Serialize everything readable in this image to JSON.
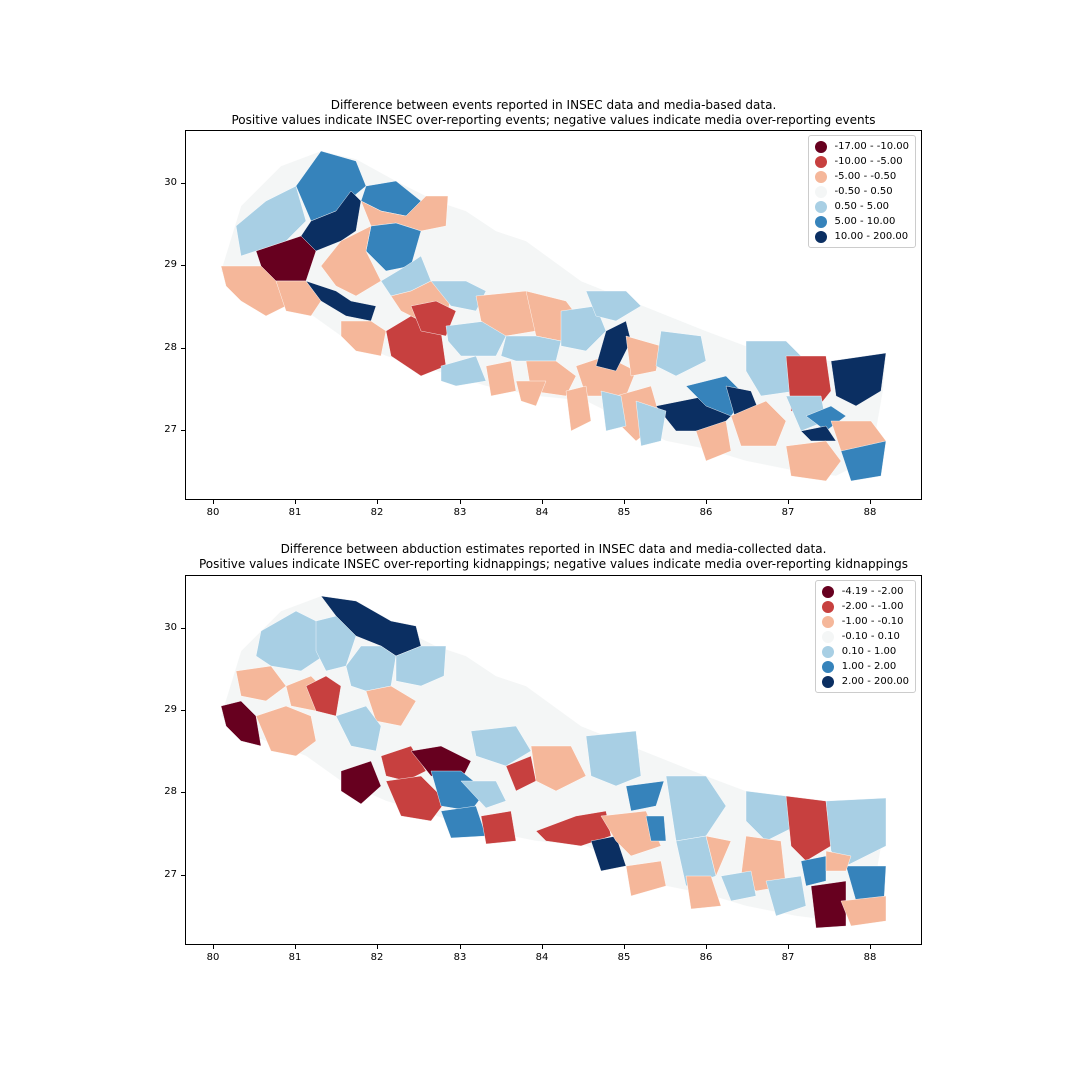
{
  "maps": [
    {
      "title_line1": "Difference between events reported in INSEC data and media-based data.",
      "title_line2": "Positive values indicate INSEC over-reporting events; negative values indicate media over-reporting events",
      "x_ticks": [
        "80",
        "81",
        "82",
        "83",
        "84",
        "85",
        "86",
        "87",
        "88"
      ],
      "y_ticks": [
        "30",
        "29",
        "28",
        "27"
      ],
      "legend": [
        {
          "label": "-17.00 - -10.00",
          "color": "#67001f"
        },
        {
          "label": "-10.00 - -5.00",
          "color": "#c7403f"
        },
        {
          "label": "-5.00 - -0.50",
          "color": "#f5b79a"
        },
        {
          "label": "-0.50 - 0.50",
          "color": "#f4f6f6"
        },
        {
          "label": "0.50 - 5.00",
          "color": "#a8cfe4"
        },
        {
          "label": "5.00 - 10.00",
          "color": "#3683bb"
        },
        {
          "label": "10.00 - 200.00",
          "color": "#0b2f62"
        }
      ]
    },
    {
      "title_line1": "Difference between abduction estimates reported in INSEC data and media-collected data.",
      "title_line2": "Positive values indicate INSEC over-reporting kidnappings; negative values indicate media over-reporting kidnappings",
      "x_ticks": [
        "80",
        "81",
        "82",
        "83",
        "84",
        "85",
        "86",
        "87",
        "88"
      ],
      "y_ticks": [
        "30",
        "29",
        "28",
        "27"
      ],
      "legend": [
        {
          "label": "-4.19 - -2.00",
          "color": "#67001f"
        },
        {
          "label": "-2.00 - -1.00",
          "color": "#c7403f"
        },
        {
          "label": "-1.00 - -0.10",
          "color": "#f5b79a"
        },
        {
          "label": "-0.10 - 0.10",
          "color": "#f4f6f6"
        },
        {
          "label": "0.10 - 1.00",
          "color": "#a8cfe4"
        },
        {
          "label": "1.00 - 2.00",
          "color": "#3683bb"
        },
        {
          "label": "2.00 - 200.00",
          "color": "#0b2f62"
        }
      ]
    }
  ]
}
